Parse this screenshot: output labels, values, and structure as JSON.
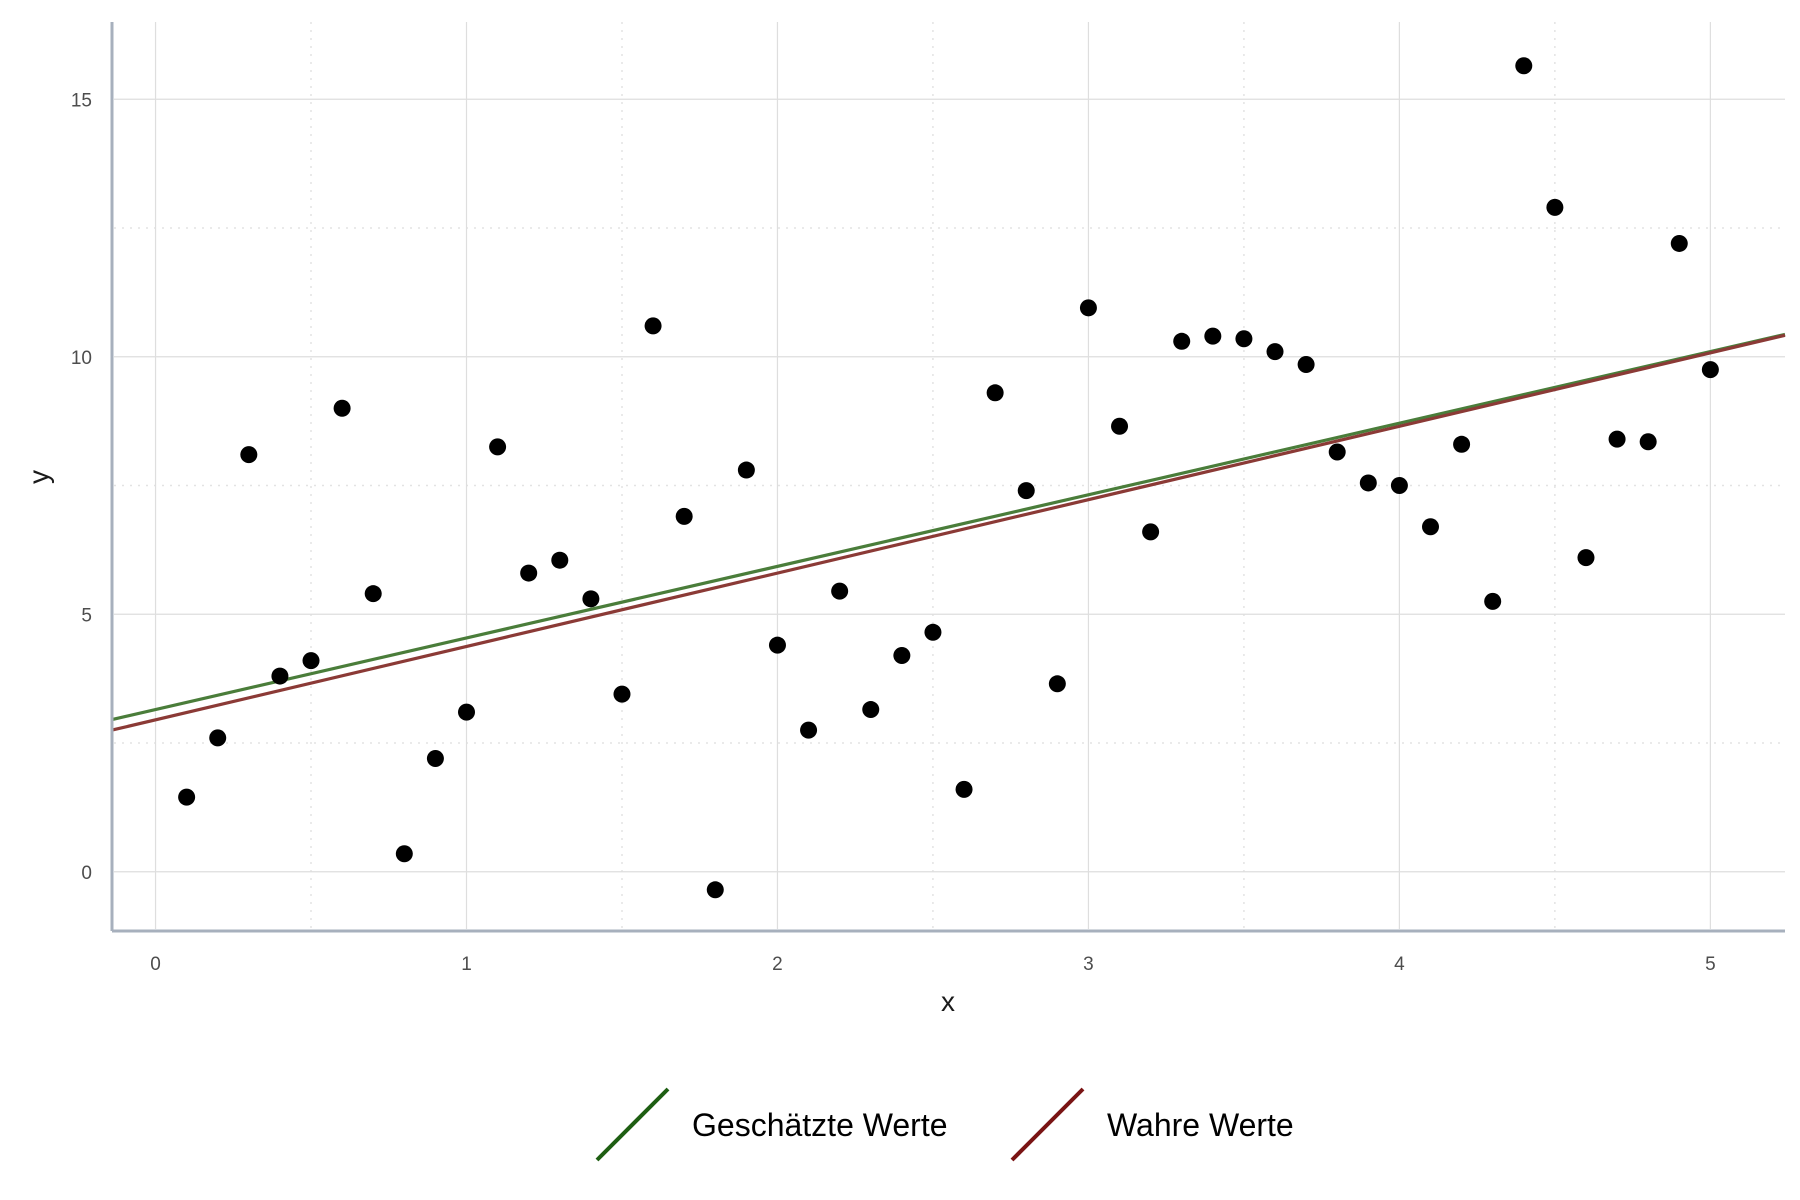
{
  "chart_data": {
    "type": "scatter",
    "title": "",
    "xlabel": "x",
    "ylabel": "y",
    "xlim": [
      -0.14,
      5.24
    ],
    "ylim": [
      -1.15,
      16.5
    ],
    "x_ticks": [
      0,
      1,
      2,
      3,
      4,
      5
    ],
    "y_ticks": [
      0,
      5,
      10,
      15
    ],
    "grid": true,
    "legend_position": "bottom",
    "points_color": "#000000",
    "points": [
      {
        "x": 0.1,
        "y": 1.45
      },
      {
        "x": 0.2,
        "y": 2.6
      },
      {
        "x": 0.3,
        "y": 8.1
      },
      {
        "x": 0.4,
        "y": 3.8
      },
      {
        "x": 0.5,
        "y": 4.1
      },
      {
        "x": 0.6,
        "y": 9.0
      },
      {
        "x": 0.7,
        "y": 5.4
      },
      {
        "x": 0.8,
        "y": 0.35
      },
      {
        "x": 0.9,
        "y": 2.2
      },
      {
        "x": 1.0,
        "y": 3.1
      },
      {
        "x": 1.1,
        "y": 8.25
      },
      {
        "x": 1.2,
        "y": 5.8
      },
      {
        "x": 1.3,
        "y": 6.05
      },
      {
        "x": 1.4,
        "y": 5.3
      },
      {
        "x": 1.5,
        "y": 3.45
      },
      {
        "x": 1.6,
        "y": 10.6
      },
      {
        "x": 1.7,
        "y": 6.9
      },
      {
        "x": 1.8,
        "y": -0.35
      },
      {
        "x": 1.9,
        "y": 7.8
      },
      {
        "x": 2.0,
        "y": 4.4
      },
      {
        "x": 2.1,
        "y": 2.75
      },
      {
        "x": 2.2,
        "y": 5.45
      },
      {
        "x": 2.3,
        "y": 3.15
      },
      {
        "x": 2.4,
        "y": 4.2
      },
      {
        "x": 2.5,
        "y": 4.65
      },
      {
        "x": 2.6,
        "y": 1.6
      },
      {
        "x": 2.7,
        "y": 9.3
      },
      {
        "x": 2.8,
        "y": 7.4
      },
      {
        "x": 2.9,
        "y": 3.65
      },
      {
        "x": 3.0,
        "y": 10.95
      },
      {
        "x": 3.1,
        "y": 8.65
      },
      {
        "x": 3.2,
        "y": 6.6
      },
      {
        "x": 3.3,
        "y": 10.3
      },
      {
        "x": 3.4,
        "y": 10.4
      },
      {
        "x": 3.5,
        "y": 10.35
      },
      {
        "x": 3.6,
        "y": 10.1
      },
      {
        "x": 3.7,
        "y": 9.85
      },
      {
        "x": 3.8,
        "y": 8.15
      },
      {
        "x": 3.9,
        "y": 7.55
      },
      {
        "x": 4.0,
        "y": 7.5
      },
      {
        "x": 4.1,
        "y": 6.7
      },
      {
        "x": 4.2,
        "y": 8.3
      },
      {
        "x": 4.3,
        "y": 5.25
      },
      {
        "x": 4.4,
        "y": 15.65
      },
      {
        "x": 4.5,
        "y": 12.9
      },
      {
        "x": 4.6,
        "y": 6.1
      },
      {
        "x": 4.7,
        "y": 8.4
      },
      {
        "x": 4.8,
        "y": 8.35
      },
      {
        "x": 4.9,
        "y": 12.2
      },
      {
        "x": 5.0,
        "y": 9.75
      }
    ],
    "lines": [
      {
        "name": "Geschätzte Werte",
        "intercept": 3.15,
        "slope": 1.39,
        "color": "#1e5e12",
        "plot_color": "#4a7d3a"
      },
      {
        "name": "Wahre Werte",
        "intercept": 2.95,
        "slope": 1.425,
        "color": "#7a1414",
        "plot_color": "#8b3a36"
      }
    ]
  }
}
